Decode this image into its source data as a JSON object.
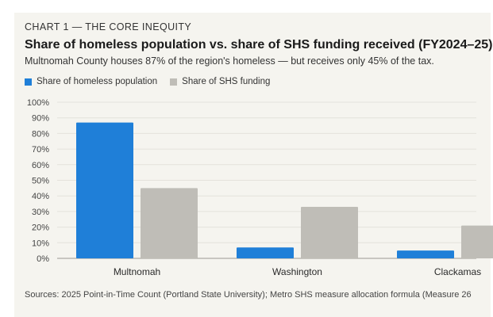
{
  "header": {
    "kicker": "CHART 1 — THE CORE INEQUITY",
    "title": "Share of homeless population vs. share of SHS funding received (FY2024–25)",
    "subtitle": "Multnomah County houses 87% of the region's homeless — but receives only 45% of the tax."
  },
  "legend": {
    "items": [
      {
        "label": "Share of homeless population",
        "color": "#1f7fd8"
      },
      {
        "label": "Share of SHS funding",
        "color": "#bfbdb7"
      }
    ]
  },
  "source": "Sources: 2025 Point-in-Time Count (Portland State University); Metro SHS measure allocation formula (Measure 26",
  "chart_data": {
    "type": "bar",
    "title": "Share of homeless population vs. share of SHS funding received (FY2024–25)",
    "categories": [
      "Multnomah",
      "Washington",
      "Clackamas"
    ],
    "series": [
      {
        "name": "Share of homeless population",
        "values": [
          87,
          7,
          5
        ],
        "color": "#1f7fd8"
      },
      {
        "name": "Share of SHS funding",
        "values": [
          45,
          33,
          21
        ],
        "color": "#bfbdb7"
      }
    ],
    "ylim": [
      0,
      100
    ],
    "yticks": [
      "0%",
      "10%",
      "20%",
      "30%",
      "40%",
      "50%",
      "60%",
      "70%",
      "80%",
      "90%",
      "100%"
    ],
    "ytick_values": [
      0,
      10,
      20,
      30,
      40,
      50,
      60,
      70,
      80,
      90,
      100
    ],
    "grid": true,
    "legend_position": "top-left"
  }
}
